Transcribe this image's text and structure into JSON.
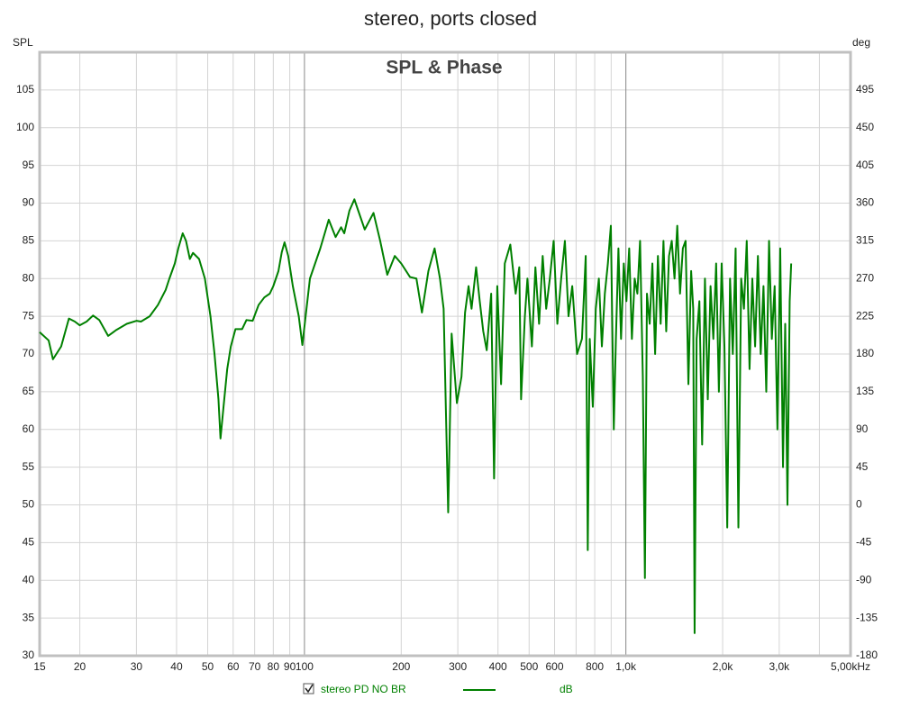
{
  "chart_data": {
    "type": "line",
    "title": "stereo, ports closed",
    "subtitle": "SPL & Phase",
    "y_label": "SPL",
    "y2_label": "deg",
    "x_scale": "log",
    "xlim": [
      15,
      5000
    ],
    "ylim": [
      30,
      110
    ],
    "y2lim": [
      -180,
      540
    ],
    "grid": true,
    "xticks": [
      15,
      20,
      30,
      40,
      50,
      60,
      70,
      80,
      90,
      100,
      200,
      300,
      400,
      500,
      600,
      800,
      {
        "value": 1000,
        "label": "1,0k"
      },
      {
        "value": 2000,
        "label": "2,0k"
      },
      {
        "value": 3000,
        "label": "3,0k"
      },
      {
        "value": 5000,
        "label": "5,00kHz"
      }
    ],
    "xminor": [
      700,
      900,
      4000
    ],
    "yticks": [
      30,
      35,
      40,
      45,
      50,
      55,
      60,
      65,
      70,
      75,
      80,
      85,
      90,
      95,
      100,
      105
    ],
    "y2ticks": [
      -180,
      -135,
      -90,
      -45,
      0,
      45,
      90,
      135,
      180,
      225,
      270,
      315,
      360,
      405,
      450,
      495
    ],
    "x": [
      15,
      16,
      16.5,
      17.5,
      18.5,
      19.3,
      20,
      21,
      22,
      23,
      24.5,
      26,
      28,
      30,
      31,
      33,
      35,
      37,
      38,
      39.5,
      40.5,
      41.8,
      42.8,
      44,
      45,
      47,
      49,
      51,
      52.5,
      53,
      54,
      54.8,
      56,
      57.5,
      59,
      61,
      64,
      66,
      69,
      72,
      75,
      78,
      80,
      83,
      85,
      86.7,
      89,
      92,
      96,
      98.5,
      104,
      112,
      119,
      125,
      130,
      133,
      138,
      143,
      147,
      154,
      164,
      172,
      181,
      191,
      200,
      213,
      223,
      232,
      243,
      254,
      264,
      271,
      280,
      287,
      298,
      308,
      316,
      324,
      331,
      342,
      351,
      360,
      369,
      381,
      389,
      398,
      409,
      420,
      437,
      454,
      466,
      472,
      485,
      494,
      510,
      523,
      537,
      551,
      565,
      580,
      596,
      612,
      629,
      646,
      663,
      681,
      705,
      730,
      750,
      761,
      772,
      789,
      806,
      824,
      842,
      860,
      879,
      898,
      917,
      931,
      948,
      966,
      985,
      1004,
      1024,
      1044,
      1065,
      1086,
      1107,
      1129,
      1146,
      1163,
      1186,
      1209,
      1233,
      1258,
      1283,
      1309,
      1335,
      1362,
      1389,
      1417,
      1445,
      1474,
      1504,
      1534,
      1565,
      1596,
      1620,
      1636,
      1660,
      1693,
      1727,
      1762,
      1798,
      1834,
      1871,
      1909,
      1947,
      1986,
      2026,
      2067,
      2109,
      2151,
      2195,
      2239,
      2284,
      2330,
      2377,
      2425,
      2474,
      2524,
      2575,
      2627,
      2680,
      2734,
      2789,
      2845,
      2903,
      2961,
      3021,
      3082,
      3131,
      3182,
      3233,
      3268
    ],
    "series": [
      {
        "name": "stereo PD NO BR",
        "unit": "dB",
        "color": "#008000",
        "values": [
          72.9,
          71.8,
          69.3,
          71,
          74.7,
          74.3,
          73.8,
          74.3,
          75.1,
          74.5,
          72.4,
          73.2,
          74,
          74.4,
          74.3,
          75,
          76.5,
          78.5,
          80,
          82,
          84,
          86,
          85,
          82.6,
          83.4,
          82.6,
          80,
          75,
          70,
          68,
          64,
          58.8,
          63,
          68,
          71,
          73.3,
          73.3,
          74.5,
          74.4,
          76.5,
          77.5,
          78,
          79,
          81,
          83.5,
          84.8,
          83,
          79,
          75,
          71.2,
          80,
          84,
          87.8,
          85.5,
          86.8,
          86,
          89,
          90.5,
          89,
          86.5,
          88.7,
          85,
          80.5,
          83,
          82,
          80.2,
          80,
          75.5,
          81,
          84,
          80,
          76,
          49,
          72.7,
          63.5,
          67,
          75.5,
          79,
          76,
          81.5,
          77,
          73,
          70.5,
          78,
          53.5,
          79,
          66,
          82,
          84.5,
          78,
          81.5,
          64,
          75,
          80,
          71,
          81.5,
          74,
          83,
          76,
          80,
          85,
          74,
          80,
          85,
          75,
          79,
          70,
          72,
          83,
          44,
          72,
          63,
          76,
          80,
          71,
          78,
          82,
          87,
          60,
          72,
          84,
          72,
          82,
          77,
          84,
          72,
          80,
          78,
          85,
          67,
          40.3,
          78,
          74,
          82,
          70,
          83,
          74,
          85,
          73,
          83,
          85,
          80,
          87,
          78,
          84,
          85,
          66,
          81,
          76,
          33,
          72,
          77,
          58,
          80,
          64,
          79,
          72,
          82,
          65,
          82,
          71,
          47,
          80,
          70,
          84,
          47,
          80,
          76,
          85,
          68,
          80,
          71,
          83,
          70,
          79,
          65,
          85,
          72,
          79,
          60,
          84,
          55,
          74,
          50,
          77,
          82
        ]
      }
    ]
  }
}
